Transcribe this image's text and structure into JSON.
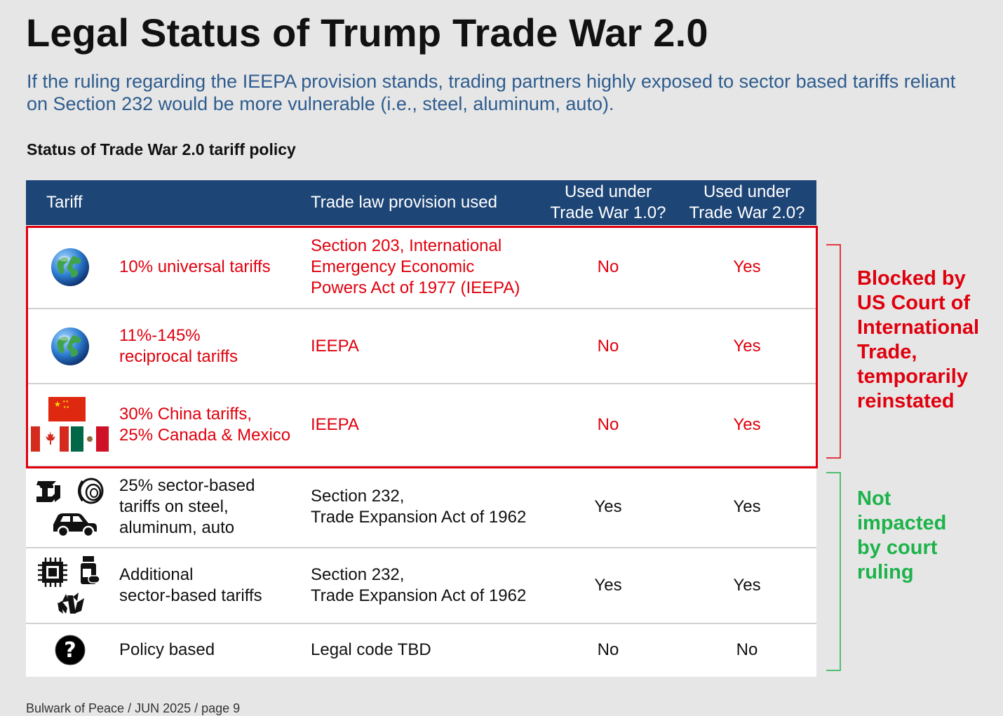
{
  "title": "Legal Status of Trump Trade War 2.0",
  "subtitle": "If the ruling regarding the IEEPA provision stands, trading partners highly exposed to sector based tariffs reliant on Section 232 would be more vulnerable (i.e., steel, aluminum, auto).",
  "section_label": "Status of Trade War 2.0 tariff policy",
  "colors": {
    "header": "#1d4576",
    "blocked": "#e0000d",
    "not_impacted": "#1db34a",
    "subtitle": "#2e5c8e"
  },
  "chart_data": {
    "type": "table",
    "columns": [
      "Tariff",
      "Trade law provision used",
      "Used under\nTrade War 1.0?",
      "Used under\nTrade War 2.0?"
    ],
    "rows": [
      {
        "icon": "globe-icon",
        "tariff": "10% universal tariffs",
        "provision": "Section 203, International Emergency Economic Powers Act of 1977 (IEEPA)",
        "tw1": "No",
        "tw2": "Yes",
        "group": "blocked"
      },
      {
        "icon": "globe-icon",
        "tariff": "11%-145% reciprocal tariffs",
        "provision": "IEEPA",
        "tw1": "No",
        "tw2": "Yes",
        "group": "blocked"
      },
      {
        "icon": "flags-icon",
        "tariff": "30% China tariffs, 25% Canada & Mexico",
        "provision": "IEEPA",
        "tw1": "No",
        "tw2": "Yes",
        "group": "blocked"
      },
      {
        "icon": "steel-aluminum-car-icon",
        "tariff": "25% sector-based tariffs on steel, aluminum, auto",
        "provision": "Section 232, Trade Expansion Act of 1962",
        "tw1": "Yes",
        "tw2": "Yes",
        "group": "not_impacted"
      },
      {
        "icon": "chip-pharma-lumber-icon",
        "tariff": "Additional sector-based tariffs",
        "provision": "Section 232, Trade Expansion Act of 1962",
        "tw1": "Yes",
        "tw2": "Yes",
        "group": "not_impacted"
      },
      {
        "icon": "question-icon",
        "tariff": "Policy based",
        "provision": "Legal code TBD",
        "tw1": "No",
        "tw2": "No",
        "group": "not_impacted"
      }
    ],
    "annotations": {
      "blocked": "Blocked by US Court of International Trade, temporarily reinstated",
      "not_impacted": "Not impacted by court ruling"
    }
  },
  "display": {
    "header": {
      "tariff": "Tariff",
      "provision": "Trade law provision used",
      "tw1_line1": "Used under",
      "tw1_line2": "Trade War 1.0?",
      "tw2_line1": "Used under",
      "tw2_line2": "Trade War 2.0?"
    },
    "rows": [
      {
        "tariff": [
          "10% universal tariffs"
        ],
        "provision": [
          "Section 203, International",
          "Emergency Economic",
          "Powers Act of 1977 (IEEPA)"
        ]
      },
      {
        "tariff": [
          "11%-145%",
          "reciprocal tariffs"
        ],
        "provision": [
          "IEEPA"
        ]
      },
      {
        "tariff": [
          "30% China tariffs,",
          "25% Canada & Mexico"
        ],
        "provision": [
          "IEEPA"
        ]
      },
      {
        "tariff": [
          "25% sector-based",
          "tariffs on steel,",
          "aluminum, auto"
        ],
        "provision": [
          "Section 232,",
          "Trade Expansion Act of 1962"
        ]
      },
      {
        "tariff": [
          "Additional",
          "sector-based tariffs"
        ],
        "provision": [
          "Section 232,",
          "Trade Expansion Act of 1962"
        ]
      },
      {
        "tariff": [
          "Policy based"
        ],
        "provision": [
          "Legal code TBD"
        ]
      }
    ],
    "blocked_lines": [
      "Blocked by",
      "US Court of",
      "International",
      "Trade,",
      "temporarily",
      "reinstated"
    ],
    "not_impacted_lines": [
      "Not",
      "impacted",
      "by court",
      "ruling"
    ]
  },
  "source": "Bulwark of Peace / JUN 2025 / page 9"
}
